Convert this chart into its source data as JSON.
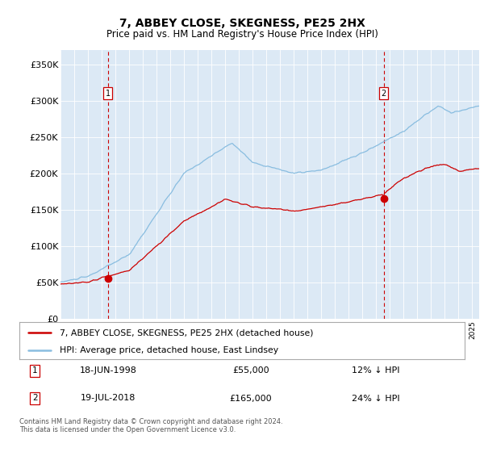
{
  "title": "7, ABBEY CLOSE, SKEGNESS, PE25 2HX",
  "subtitle": "Price paid vs. HM Land Registry's House Price Index (HPI)",
  "bg_color": "#dce9f5",
  "hpi_color": "#89bde0",
  "price_color": "#cc0000",
  "ylim": [
    0,
    370000
  ],
  "yticks": [
    0,
    50000,
    100000,
    150000,
    200000,
    250000,
    300000,
    350000
  ],
  "sale1_date": "18-JUN-1998",
  "sale1_price": 55000,
  "sale1_label": "12% ↓ HPI",
  "sale1_year": 1998.46,
  "sale2_date": "19-JUL-2018",
  "sale2_price": 165000,
  "sale2_label": "24% ↓ HPI",
  "sale2_year": 2018.54,
  "legend_line1": "7, ABBEY CLOSE, SKEGNESS, PE25 2HX (detached house)",
  "legend_line2": "HPI: Average price, detached house, East Lindsey",
  "footnote": "Contains HM Land Registry data © Crown copyright and database right 2024.\nThis data is licensed under the Open Government Licence v3.0.",
  "xstart": 1995.0,
  "xend": 2025.5
}
